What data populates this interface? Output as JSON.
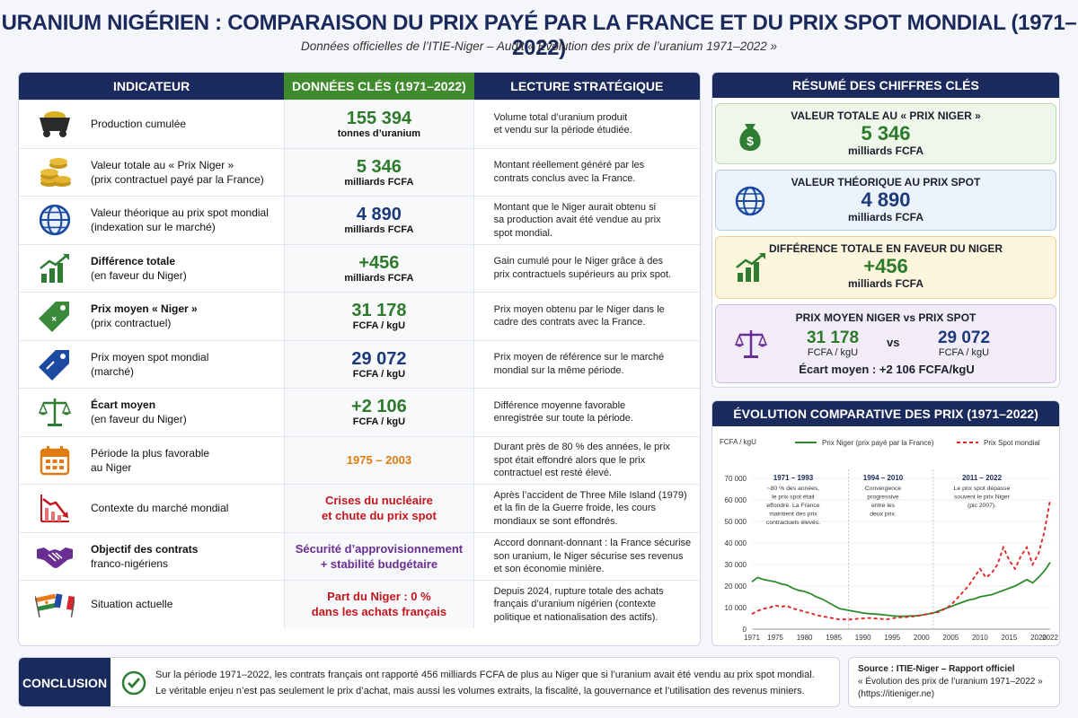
{
  "header": {
    "title": "URANIUM NIGÉRIEN : COMPARAISON DU PRIX PAYÉ PAR LA FRANCE ET DU PRIX SPOT MONDIAL (1971–2022)",
    "subtitle": "Données officielles de l’ITIE-Niger – Audit « Évolution des prix de l’uranium 1971–2022 »"
  },
  "table": {
    "headers": [
      "INDICATEUR",
      "DONNÉES CLÉS (1971–2022)",
      "LECTURE STRATÉGIQUE"
    ],
    "rows": [
      {
        "icon": "mine-cart-icon",
        "label1": "Production cumulée",
        "label2": "",
        "value": "155 394",
        "unit": "tonnes d’uranium",
        "color": "#2d7a2a",
        "desc1": "Volume total d’uranium produit",
        "desc2": "et vendu sur la période étudiée.",
        "desc3": ""
      },
      {
        "icon": "coins-icon",
        "label1": "Valeur totale au « Prix Niger »",
        "label2": "(prix contractuel payé par la France)",
        "value": "5 346",
        "unit": "milliards FCFA",
        "color": "#2d7a2a",
        "desc1": "Montant réellement généré par les",
        "desc2": "contrats conclus avec la France.",
        "desc3": ""
      },
      {
        "icon": "globe-icon",
        "label1": "Valeur théorique au prix spot mondial",
        "label2": "(indexation sur le marché)",
        "value": "4 890",
        "unit": "milliards FCFA",
        "color": "#1b3a7a",
        "desc1": "Montant que le Niger aurait obtenu si",
        "desc2": "sa production avait été vendue au prix",
        "desc3": "spot mondial."
      },
      {
        "icon": "growth-chart-icon",
        "label1": "Différence totale",
        "label2": "(en faveur du Niger)",
        "value": "+456",
        "unit": "milliards FCFA",
        "color": "#2d7a2a",
        "desc1": "Gain cumulé pour le Niger grâce à des",
        "desc2": "prix contractuels supérieurs au prix spot.",
        "desc3": ""
      },
      {
        "icon": "price-tag-green-icon",
        "label1": "Prix moyen « Niger »",
        "label2": "(prix contractuel)",
        "value": "31 178",
        "unit": "FCFA / kgU",
        "color": "#2d7a2a",
        "desc1": "Prix moyen obtenu par le Niger dans le",
        "desc2": "cadre des contrats avec la France.",
        "desc3": ""
      },
      {
        "icon": "price-tag-blue-icon",
        "label1": "Prix moyen spot mondial",
        "label2": "(marché)",
        "value": "29 072",
        "unit": "FCFA / kgU",
        "color": "#1b3a7a",
        "desc1": "Prix moyen de référence sur le marché",
        "desc2": "mondial sur la même période.",
        "desc3": ""
      },
      {
        "icon": "balance-scale-icon",
        "label1": "Écart moyen",
        "label2": "(en faveur du Niger)",
        "value": "+2 106",
        "unit": "FCFA / kgU",
        "color": "#2d7a2a",
        "desc1": "Différence moyenne favorable",
        "desc2": "enregistrée sur toute la période.",
        "desc3": ""
      },
      {
        "icon": "calendar-icon",
        "label1": "Période la plus favorable",
        "label2": "au Niger",
        "value": "1975 – 2003",
        "unit": "",
        "color": "#e07b12",
        "desc1": "Durant près de 80 % des années, le prix",
        "desc2": "spot était effondré alors que le prix",
        "desc3": "contractuel est resté élevé."
      },
      {
        "icon": "declining-chart-icon",
        "label1": "Contexte du marché mondial",
        "label2": "",
        "value": "Crises du nucléaire",
        "unit": "et chute du prix spot",
        "color": "#c4141c",
        "desc1": "Après l’accident de Three Mile Island (1979)",
        "desc2": "et la fin de la Guerre froide, les cours",
        "desc3": "mondiaux se sont effondrés."
      },
      {
        "icon": "handshake-icon",
        "label1": "Objectif des contrats",
        "label2": "franco-nigériens",
        "value": "Sécurité d’approvisionnement",
        "unit": "+ stabilité budgétaire",
        "color": "#6a2e92",
        "desc1": "Accord donnant-donnant : la France sécurise",
        "desc2": "son uranium, le Niger sécurise ses revenus",
        "desc3": "et son économie minière."
      },
      {
        "icon": "flags-icon",
        "label1": "Situation actuelle",
        "label2": "",
        "value": "Part du Niger : 0 %",
        "unit": "dans les achats français",
        "color": "#c4141c",
        "desc1": "Depuis 2024, rupture totale des achats",
        "desc2": "français d’uranium nigérien (contexte",
        "desc3": "politique et nationalisation des actifs)."
      }
    ]
  },
  "summary": {
    "title": "RÉSUMÉ DES CHIFFRES CLÉS",
    "card1": {
      "title": "VALEUR TOTALE AU « PRIX NIGER »",
      "value": "5 346",
      "unit": "milliards FCFA"
    },
    "card2": {
      "title": "VALEUR THÉORIQUE AU PRIX SPOT",
      "value": "4 890",
      "unit": "milliards FCFA"
    },
    "card3": {
      "title": "DIFFÉRENCE TOTALE EN FAVEUR DU NIGER",
      "value": "+456",
      "unit": "milliards FCFA"
    },
    "card4": {
      "title": "PRIX MOYEN NIGER vs PRIX SPOT",
      "v1": "31 178",
      "u1": "FCFA / kgU",
      "vs": "vs",
      "v2": "29 072",
      "u2": "FCFA / kgU",
      "gap": "Écart moyen : +2 106 FCFA/kgU"
    }
  },
  "chart_data": {
    "type": "line",
    "title": "ÉVOLUTION COMPARATIVE DES PRIX (1971–2022)",
    "ylabel": "FCFA / kgU",
    "ylim": [
      0,
      70000
    ],
    "yticks": [
      0,
      10000,
      20000,
      30000,
      40000,
      50000,
      60000,
      70000
    ],
    "ytick_labels": [
      "0",
      "10 000",
      "20 000",
      "30 000",
      "40 000",
      "50 000",
      "60 000",
      "70 000"
    ],
    "xlim": [
      1971,
      2022
    ],
    "xticks": [
      1971,
      1975,
      1980,
      1985,
      1990,
      1995,
      2000,
      2005,
      2010,
      2015,
      2020,
      2022
    ],
    "series": [
      {
        "name": "Prix Niger (prix payé par la France)",
        "color": "#2d8a2d",
        "style": "solid",
        "x": [
          1971,
          1972,
          1973,
          1974,
          1975,
          1976,
          1977,
          1978,
          1979,
          1980,
          1981,
          1982,
          1983,
          1984,
          1985,
          1986,
          1987,
          1988,
          1989,
          1990,
          1991,
          1992,
          1993,
          1994,
          1995,
          1996,
          1997,
          1998,
          1999,
          2000,
          2001,
          2002,
          2003,
          2004,
          2005,
          2006,
          2007,
          2008,
          2009,
          2010,
          2011,
          2012,
          2013,
          2014,
          2015,
          2016,
          2017,
          2018,
          2019,
          2020,
          2021,
          2022
        ],
        "y": [
          22000,
          24000,
          23000,
          22500,
          22000,
          21000,
          20500,
          19000,
          18000,
          17500,
          16500,
          15000,
          14000,
          12500,
          11000,
          9500,
          9000,
          8500,
          8000,
          7500,
          7200,
          7000,
          6800,
          6500,
          6200,
          6000,
          6000,
          6100,
          6200,
          6500,
          7000,
          7500,
          8500,
          9500,
          10500,
          11500,
          12500,
          13500,
          14000,
          15000,
          15500,
          16000,
          17000,
          18000,
          19000,
          20000,
          21500,
          23000,
          21500,
          24000,
          27000,
          31000
        ]
      },
      {
        "name": "Prix Spot mondial",
        "color": "#e02020",
        "style": "dashed",
        "x": [
          1971,
          1972,
          1973,
          1974,
          1975,
          1976,
          1977,
          1978,
          1979,
          1980,
          1981,
          1982,
          1983,
          1984,
          1985,
          1986,
          1987,
          1988,
          1989,
          1990,
          1991,
          1992,
          1993,
          1994,
          1995,
          1996,
          1997,
          1998,
          1999,
          2000,
          2001,
          2002,
          2003,
          2004,
          2005,
          2006,
          2007,
          2008,
          2009,
          2010,
          2011,
          2012,
          2013,
          2014,
          2015,
          2016,
          2017,
          2018,
          2019,
          2020,
          2021,
          2022
        ],
        "y": [
          7000,
          8500,
          9500,
          10000,
          11000,
          10500,
          10800,
          9500,
          9000,
          8000,
          7500,
          6500,
          6000,
          5500,
          5000,
          4500,
          4500,
          4500,
          4800,
          5000,
          5200,
          5000,
          4800,
          4500,
          5000,
          5500,
          5500,
          5800,
          6000,
          6500,
          7000,
          7500,
          8000,
          9500,
          11000,
          14000,
          17000,
          20000,
          24000,
          28000,
          24000,
          26000,
          30000,
          38000,
          32000,
          28000,
          34000,
          38000,
          30000,
          35000,
          45000,
          60000
        ]
      }
    ],
    "annotations": [
      {
        "title": "1971 – 1993",
        "lines": [
          "~80 % des années,",
          "le prix spot était",
          "effondré. La France",
          "maintient des prix",
          "contractuels élevés."
        ]
      },
      {
        "title": "1994 – 2010",
        "lines": [
          "Convergence",
          "progressive",
          "entre les",
          "deux prix."
        ]
      },
      {
        "title": "2011 – 2022",
        "lines": [
          "Le prix spot dépasse",
          "souvent le prix Niger",
          "(pic 2007)."
        ]
      }
    ]
  },
  "conclusion": {
    "tag": "CONCLUSION",
    "line1": "Sur la période 1971–2022, les contrats français ont rapporté 456 milliards FCFA de plus au Niger que si l’uranium avait été vendu au prix spot mondial.",
    "line2": "Le véritable enjeu n’est pas seulement le prix d’achat, mais aussi les volumes extraits, la fiscalité, la gouvernance et l’utilisation des revenus miniers."
  },
  "source": {
    "line1": "Source : ITIE-Niger – Rapport officiel",
    "line2": "« Évolution des prix de l’uranium 1971–2022 »",
    "line3": "(https://itieniger.ne)"
  }
}
